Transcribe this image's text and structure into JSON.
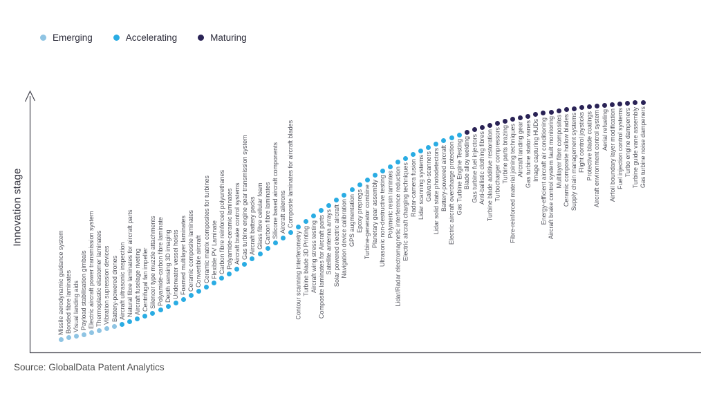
{
  "y_axis_label": "Innovation stage",
  "source": "Source: GlobalData Patent Analytics",
  "legend": {
    "items": [
      {
        "label": "Emerging",
        "color": "#8fc4e3"
      },
      {
        "label": "Accelerating",
        "color": "#2aace3"
      },
      {
        "label": "Maturing",
        "color": "#2a2356"
      }
    ]
  },
  "chart_data": {
    "type": "scatter",
    "title": "",
    "ylabel": "Innovation stage",
    "xlabel": "",
    "grid": false,
    "legend_position": "top-left",
    "curve_shape": "s-curve ascending left-to-right",
    "stages": {
      "Emerging": "#8fc4e3",
      "Accelerating": "#2aace3",
      "Maturing": "#2a2356"
    },
    "label_below_from_index": 31,
    "points": [
      {
        "label": "Missile aerodynamic guidance system",
        "stage": "Emerging"
      },
      {
        "label": "Bonded fibre laminates",
        "stage": "Emerging"
      },
      {
        "label": "Visual landing aids",
        "stage": "Emerging"
      },
      {
        "label": "Payload stabilisation gimbals",
        "stage": "Emerging"
      },
      {
        "label": "Electric aircraft power transmission system",
        "stage": "Emerging"
      },
      {
        "label": "Thermoplastic elastomer laminates",
        "stage": "Emerging"
      },
      {
        "label": "Vibration supression devices",
        "stage": "Emerging"
      },
      {
        "label": "Battery-powered drones",
        "stage": "Emerging"
      },
      {
        "label": "Aircraft ultrasonic inspection",
        "stage": "Accelerating"
      },
      {
        "label": "Natural fibre laminates for aircraft parts",
        "stage": "Accelerating"
      },
      {
        "label": "Aircraft fuselage riveting",
        "stage": "Accelerating"
      },
      {
        "label": "Centrifugal fan impeller",
        "stage": "Accelerating"
      },
      {
        "label": "Silencer type muzzle attachments",
        "stage": "Accelerating"
      },
      {
        "label": "Polyamide-carbon fibre laminate",
        "stage": "Accelerating"
      },
      {
        "label": "Depth sensing 3D imaging",
        "stage": "Accelerating"
      },
      {
        "label": "Underwater vessel hoists",
        "stage": "Accelerating"
      },
      {
        "label": "Foamed multilayer laminates",
        "stage": "Accelerating"
      },
      {
        "label": "Ceramic composite laminates",
        "stage": "Accelerating"
      },
      {
        "label": "Convertible aircraft",
        "stage": "Accelerating"
      },
      {
        "label": "Ceramic matrix composites for turbines",
        "stage": "Accelerating"
      },
      {
        "label": "Flexible PV Laminate",
        "stage": "Accelerating"
      },
      {
        "label": "Carbon fibre reinforced polyurethanes",
        "stage": "Accelerating"
      },
      {
        "label": "Polyamide-ceramic laminates",
        "stage": "Accelerating"
      },
      {
        "label": "Aircraft brake control systems",
        "stage": "Accelerating"
      },
      {
        "label": "Gas turbine engine gear transmission system",
        "stage": "Accelerating"
      },
      {
        "label": "Aircraft battery packs",
        "stage": "Accelerating"
      },
      {
        "label": "Glass fibre cellular foam",
        "stage": "Accelerating"
      },
      {
        "label": "Carbon fibre laminates",
        "stage": "Accelerating"
      },
      {
        "label": "Silicone based aircraft components",
        "stage": "Accelerating"
      },
      {
        "label": "Aircraft ailerons",
        "stage": "Accelerating"
      },
      {
        "label": "Composite laminates for aircraft blades",
        "stage": "Accelerating"
      },
      {
        "label": "Contour scanning interferometry",
        "stage": "Accelerating"
      },
      {
        "label": "Turbine blade 3D Printing",
        "stage": "Accelerating"
      },
      {
        "label": "Aircraft wing stress testing",
        "stage": "Accelerating"
      },
      {
        "label": "Composite laminates for Aircraft parts",
        "stage": "Accelerating"
      },
      {
        "label": "Satellite antenna arrays",
        "stage": "Accelerating"
      },
      {
        "label": "Solar powered electric aircraft",
        "stage": "Accelerating"
      },
      {
        "label": "Navigation device calibration",
        "stage": "Accelerating"
      },
      {
        "label": "GPS augmentation",
        "stage": "Accelerating"
      },
      {
        "label": "Epoxy prepregs",
        "stage": "Accelerating"
      },
      {
        "label": "Turbine-generator combine",
        "stage": "Accelerating"
      },
      {
        "label": "Planetary gear assembly",
        "stage": "Accelerating"
      },
      {
        "label": "Ultrasonic non-destructive testing",
        "stage": "Accelerating"
      },
      {
        "label": "Polymeric resin lamintes",
        "stage": "Accelerating"
      },
      {
        "label": "Lidar/Radar electromagnetic interference reduction",
        "stage": "Accelerating"
      },
      {
        "label": "Electric aircraft charging techniques",
        "stage": "Accelerating"
      },
      {
        "label": "Radar-camera fusion",
        "stage": "Accelerating"
      },
      {
        "label": "Lidar scanning systems",
        "stage": "Accelerating"
      },
      {
        "label": "Galvano-scanners",
        "stage": "Accelerating"
      },
      {
        "label": "Lidar solid state photodetectors",
        "stage": "Accelerating"
      },
      {
        "label": "Battery-powered aircraft",
        "stage": "Accelerating"
      },
      {
        "label": "Electric aircraft overcharge protection",
        "stage": "Accelerating"
      },
      {
        "label": "Gas Turbine Engine Testing",
        "stage": "Accelerating"
      },
      {
        "label": "Blade alloy welding",
        "stage": "Maturing"
      },
      {
        "label": "Gas turbine fuel injectors",
        "stage": "Maturing"
      },
      {
        "label": "Anti-ballistic clothing fibres",
        "stage": "Maturing"
      },
      {
        "label": "Turbine blade additive restoration",
        "stage": "Maturing"
      },
      {
        "label": "Turbocharger compressors",
        "stage": "Maturing"
      },
      {
        "label": "Turbine parts brazing",
        "stage": "Maturing"
      },
      {
        "label": "Fibre-reinforced material joining techniques",
        "stage": "Maturing"
      },
      {
        "label": "Aircraft landing gear",
        "stage": "Maturing"
      },
      {
        "label": "Gas turbine stator vanes",
        "stage": "Maturing"
      },
      {
        "label": "Image capturing HUDs",
        "stage": "Maturing"
      },
      {
        "label": "Energy-efficient aircraft air conditioning",
        "stage": "Maturing"
      },
      {
        "label": "Aircraft brake control system fault monitoring",
        "stage": "Maturing"
      },
      {
        "label": "Multilayer fibre composites",
        "stage": "Maturing"
      },
      {
        "label": "Ceramic composite hollow blades",
        "stage": "Maturing"
      },
      {
        "label": "Supply chain management systems",
        "stage": "Maturing"
      },
      {
        "label": "Flight control joysticks",
        "stage": "Maturing"
      },
      {
        "label": "Protective blade coatings",
        "stage": "Maturing"
      },
      {
        "label": "Aircraft environment control system",
        "stage": "Maturing"
      },
      {
        "label": "Aerial refueling",
        "stage": "Maturing"
      },
      {
        "label": "Airfoil boundary layer modification",
        "stage": "Maturing"
      },
      {
        "label": "Fuel injection control systems",
        "stage": "Maturing"
      },
      {
        "label": "Turbo engine dampeners",
        "stage": "Maturing"
      },
      {
        "label": "Turbine guide vane assembly",
        "stage": "Maturing"
      },
      {
        "label": "Gas turbine noise dampeners",
        "stage": "Maturing"
      }
    ]
  }
}
